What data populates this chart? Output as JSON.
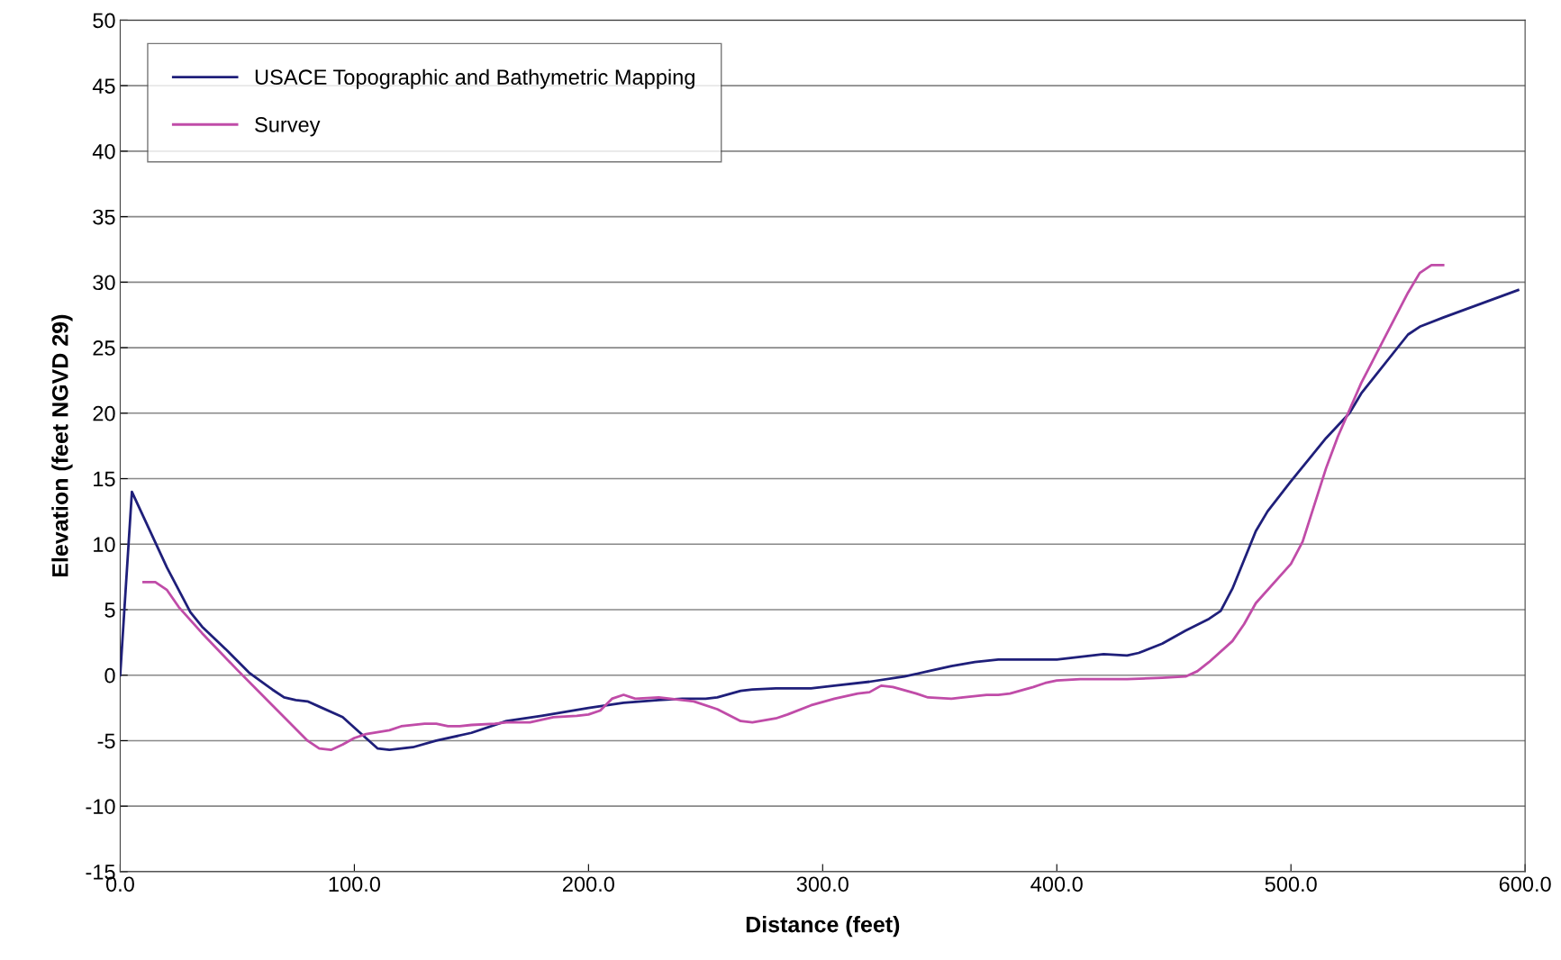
{
  "chart_data": {
    "type": "line",
    "xlabel": "Distance (feet)",
    "ylabel": "Elevation (feet NGVD 29)",
    "xlim": [
      0,
      600
    ],
    "ylim": [
      -15,
      50
    ],
    "xticks": [
      {
        "value": 0,
        "label": "0.0"
      },
      {
        "value": 100,
        "label": "100.0"
      },
      {
        "value": 200,
        "label": "200.0"
      },
      {
        "value": 300,
        "label": "300.0"
      },
      {
        "value": 400,
        "label": "400.0"
      },
      {
        "value": 500,
        "label": "500.0"
      },
      {
        "value": 600,
        "label": "600.0"
      }
    ],
    "yticks": [
      -15,
      -10,
      -5,
      0,
      5,
      10,
      15,
      20,
      25,
      30,
      35,
      40,
      45,
      50
    ],
    "grid": "y",
    "legend": "top left",
    "marker": "none",
    "line_style": "solid",
    "series": [
      {
        "name": "USACE Topographic and Bathymetric Mapping",
        "color": "#1f1f7a",
        "x": [
          0,
          5,
          20,
          30,
          35,
          45,
          55,
          65,
          70,
          75,
          80,
          85,
          95,
          100,
          110,
          115,
          125,
          135,
          150,
          165,
          180,
          200,
          215,
          230,
          240,
          250,
          255,
          265,
          270,
          280,
          295,
          305,
          320,
          335,
          345,
          355,
          365,
          375,
          385,
          400,
          405,
          415,
          420,
          430,
          435,
          445,
          455,
          465,
          470,
          475,
          485,
          490,
          500,
          515,
          525,
          530,
          550,
          555,
          565,
          597
        ],
        "values": [
          0,
          14,
          8.2,
          4.8,
          3.7,
          2.0,
          0.2,
          -1.1,
          -1.7,
          -1.9,
          -2.0,
          -2.4,
          -3.2,
          -4.0,
          -5.6,
          -5.7,
          -5.5,
          -5.0,
          -4.4,
          -3.5,
          -3.1,
          -2.5,
          -2.1,
          -1.9,
          -1.8,
          -1.8,
          -1.7,
          -1.2,
          -1.1,
          -1.0,
          -1.0,
          -0.8,
          -0.5,
          -0.1,
          0.3,
          0.7,
          1.0,
          1.2,
          1.2,
          1.2,
          1.3,
          1.5,
          1.6,
          1.5,
          1.7,
          2.4,
          3.4,
          4.3,
          4.9,
          6.6,
          11.0,
          12.5,
          14.8,
          18.1,
          20.0,
          21.5,
          26.0,
          26.6,
          27.3,
          29.4
        ]
      },
      {
        "name": "Survey",
        "color": "#c04ca8",
        "x": [
          10,
          15,
          20,
          25,
          35,
          50,
          65,
          80,
          85,
          90,
          95,
          100,
          105,
          115,
          120,
          130,
          135,
          140,
          145,
          150,
          160,
          165,
          175,
          185,
          195,
          200,
          205,
          210,
          215,
          220,
          230,
          240,
          245,
          255,
          265,
          270,
          280,
          285,
          295,
          305,
          315,
          320,
          325,
          330,
          340,
          345,
          355,
          360,
          370,
          375,
          380,
          390,
          395,
          400,
          410,
          420,
          430,
          445,
          455,
          460,
          465,
          475,
          480,
          485,
          500,
          505,
          515,
          520,
          530,
          550,
          555,
          560,
          565
        ],
        "values": [
          7.1,
          7.1,
          6.5,
          5.2,
          3.2,
          0.4,
          -2.3,
          -5.0,
          -5.6,
          -5.7,
          -5.3,
          -4.8,
          -4.5,
          -4.2,
          -3.9,
          -3.7,
          -3.7,
          -3.9,
          -3.9,
          -3.8,
          -3.7,
          -3.6,
          -3.6,
          -3.2,
          -3.1,
          -3.0,
          -2.7,
          -1.8,
          -1.5,
          -1.8,
          -1.7,
          -1.9,
          -2.0,
          -2.6,
          -3.5,
          -3.6,
          -3.3,
          -3.0,
          -2.3,
          -1.8,
          -1.4,
          -1.3,
          -0.8,
          -0.9,
          -1.4,
          -1.7,
          -1.8,
          -1.7,
          -1.5,
          -1.5,
          -1.4,
          -0.9,
          -0.6,
          -0.4,
          -0.3,
          -0.3,
          -0.3,
          -0.2,
          -0.1,
          0.3,
          1.0,
          2.6,
          3.9,
          5.5,
          8.5,
          10.2,
          15.8,
          18.2,
          22.3,
          29.2,
          30.7,
          31.3,
          31.3
        ]
      }
    ]
  }
}
